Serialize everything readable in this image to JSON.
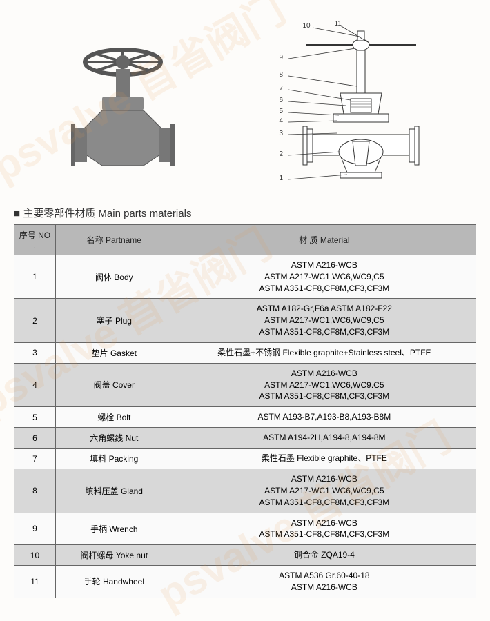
{
  "watermarks": [
    "psvalve 苜省阀门",
    "psvalve 苜省阀门",
    "psvalve 苜省阀门"
  ],
  "section_title": "■ 主要零部件材质  Main parts materials",
  "table": {
    "headers": {
      "no": "序号 NO .",
      "name": "名称 Partname",
      "material": "材  质 Material"
    },
    "rows": [
      {
        "no": "1",
        "name": "阀体 Body",
        "material": "ASTM A216-WCB\nASTM A217-WC1,WC6,WC9,C5\nASTM A351-CF8,CF8M,CF3,CF3M"
      },
      {
        "no": "2",
        "name": "塞子 Plug",
        "material": "ASTM A182-Gr,F6a ASTM A182-F22\nASTM A217-WC1,WC6,WC9,C5\nASTM A351-CF8,CF8M,CF3,CF3M"
      },
      {
        "no": "3",
        "name": "垫片 Gasket",
        "material": "柔性石墨+不锈钢  Flexible graphite+Stainless steel、PTFE"
      },
      {
        "no": "4",
        "name": "阀盖 Cover",
        "material": "ASTM A216-WCB\nASTM A217-WC1,WC6,WC9.C5\nASTM A351-CF8,CF8M,CF3,CF3M"
      },
      {
        "no": "5",
        "name": "螺栓 Bolt",
        "material": "ASTM A193-B7,A193-B8,A193-B8M"
      },
      {
        "no": "6",
        "name": "六角螺线 Nut",
        "material": "ASTM A194-2H,A194-8,A194-8M"
      },
      {
        "no": "7",
        "name": "填料 Packing",
        "material": "柔性石墨 Flexible graphite、PTFE"
      },
      {
        "no": "8",
        "name": "填料压盖 Gland",
        "material": "ASTM A216-WCB\nASTM A217-WC1,WC6,WC9,C5\nASTM A351-CF8,CF8M,CF3,CF3M"
      },
      {
        "no": "9",
        "name": "手柄 Wrench",
        "material": "ASTM A216-WCB\nASTM A351-CF8,CF8M,CF3,CF3M"
      },
      {
        "no": "10",
        "name": "阀杆螺母 Yoke nut",
        "material": "铜合金 ZQA19-4"
      },
      {
        "no": "11",
        "name": "手轮 Handwheel",
        "material": "ASTM A536 Gr.60-40-18\nASTM A216-WCB"
      }
    ]
  },
  "diagram": {
    "callouts": [
      "1",
      "2",
      "3",
      "4",
      "5",
      "6",
      "7",
      "8",
      "9",
      "10",
      "11"
    ],
    "colors": {
      "line": "#333",
      "fill": "#fff"
    }
  },
  "photo": {
    "description": "industrial plug valve with handwheel",
    "colors": {
      "body": "#888",
      "shadow": "#555"
    }
  }
}
